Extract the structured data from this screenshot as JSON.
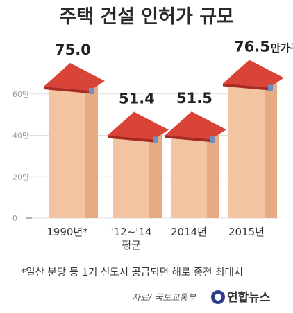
{
  "chart_data": {
    "type": "bar",
    "title": "주택 건설 인허가 규모",
    "categories": [
      "1990년*",
      "'12~'14\n평균",
      "2014년",
      "2015년"
    ],
    "values": [
      75.0,
      51.4,
      51.5,
      76.5
    ],
    "value_labels": [
      "75.0",
      "51.4",
      "51.5",
      "76.5"
    ],
    "unit": "만가구",
    "ylim": [
      0,
      80
    ],
    "yticks": [
      0,
      20,
      40,
      60
    ],
    "ytick_labels": [
      "0",
      "20만",
      "40만",
      "60만"
    ],
    "grid": true,
    "xlabel": "",
    "ylabel": ""
  },
  "footnote": "*일산 분당 등 1기 신도시 공급되던 해로 종전 최대치",
  "source": "자료/ 국토교통부",
  "logo_text": "연합뉴스",
  "colors": {
    "wall_front": "#f3c4a1",
    "wall_side": "#e7aa82",
    "roof": "#d94438",
    "roof_dark": "#a82a22",
    "window": "#6f8ec4",
    "grid": "#e0e0e0"
  }
}
